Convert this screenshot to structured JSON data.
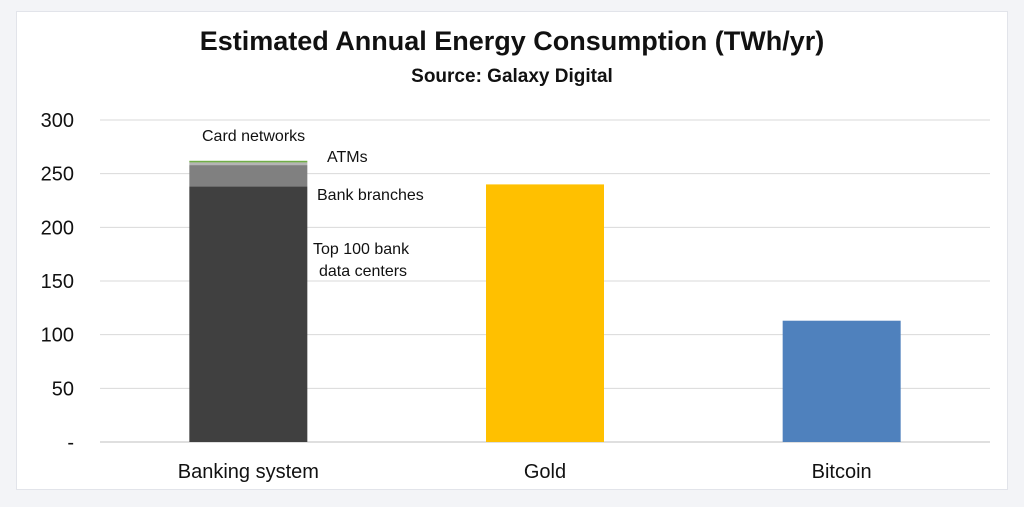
{
  "chart_data": {
    "type": "bar",
    "title": "Estimated Annual Energy Consumption (TWh/yr)",
    "subtitle": "Source: Galaxy Digital",
    "xlabel": "",
    "ylabel": "",
    "ylim": [
      0,
      300
    ],
    "yticks": [
      {
        "value": 0,
        "label": "-"
      },
      {
        "value": 50,
        "label": "50"
      },
      {
        "value": 100,
        "label": "100"
      },
      {
        "value": 150,
        "label": "150"
      },
      {
        "value": 200,
        "label": "200"
      },
      {
        "value": 250,
        "label": "250"
      },
      {
        "value": 300,
        "label": "300"
      }
    ],
    "grid": true,
    "categories": [
      "Banking system",
      "Gold",
      "Bitcoin"
    ],
    "stacked_series": [
      {
        "name": "Top 100 bank data centers",
        "category": "Banking system",
        "value": 238,
        "color": "#404040"
      },
      {
        "name": "Bank branches",
        "category": "Banking system",
        "value": 20,
        "color": "#808080"
      },
      {
        "name": "ATMs",
        "category": "Banking system",
        "value": 2.5,
        "color": "#b4b4b4"
      },
      {
        "name": "Card networks",
        "category": "Banking system",
        "value": 1.5,
        "color": "#70ad47"
      }
    ],
    "bars": [
      {
        "category": "Gold",
        "value": 240,
        "color": "#ffc000"
      },
      {
        "category": "Bitcoin",
        "value": 113,
        "color": "#4f81bd"
      }
    ],
    "annotations": [
      {
        "text": "Card networks"
      },
      {
        "text": "ATMs"
      },
      {
        "text": "Bank branches"
      },
      {
        "lines": [
          "Top 100 bank",
          "data centers"
        ]
      }
    ]
  }
}
